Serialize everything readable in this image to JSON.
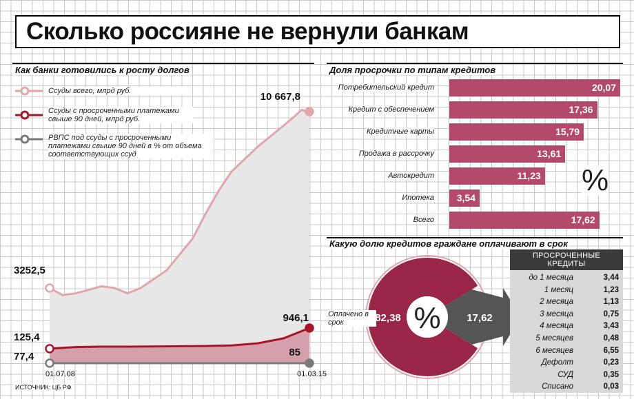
{
  "title": "Сколько россияне не вернули банкам",
  "source": "ИСТОЧНИК: ЦБ РФ",
  "colors": {
    "bar": "#b44a6a",
    "light_pink": "#e0a6ae",
    "dark_red": "#a8152a",
    "gray": "#7a7a7a",
    "donut": "#9a2647",
    "donut_gray": "#555555",
    "area_gray": "#e7e7e7",
    "area_pink": "#d4a0ab"
  },
  "chart_data": [
    {
      "type": "line",
      "title": "Как банки готовились к росту долгов",
      "x_labels": [
        "01.07.08",
        "01.03.15"
      ],
      "series": [
        {
          "name": "Ссуды всего, млрд руб.",
          "start": 3252.5,
          "end": 10667.8,
          "start_label": "3252,5",
          "end_label": "10 667,8"
        },
        {
          "name": "Ссуды с просроченными платежами свыше 90 дней, млрд руб.",
          "start": 125.4,
          "end": 946.1,
          "start_label": "125,4",
          "end_label": "946,1"
        },
        {
          "name": "РВПС под ссуды с просроченными платежами свыше 90 дней в % от объема соответствующих ссуд",
          "start": 77.4,
          "end": 85,
          "start_label": "77,4",
          "end_label": "85"
        }
      ]
    },
    {
      "type": "bar",
      "title": "Доля просрочки по типам кредитов",
      "unit": "%",
      "categories": [
        "Потребительский кредит",
        "Кредит с обеспечением",
        "Кредитные карты",
        "Продажа в рассрочку",
        "Автокредит",
        "Ипотека",
        "Всего"
      ],
      "values": [
        20.07,
        17.36,
        15.79,
        13.61,
        11.23,
        3.54,
        17.62
      ],
      "value_labels": [
        "20,07",
        "17,36",
        "15,79",
        "13,61",
        "11,23",
        "3,54",
        "17,62"
      ]
    },
    {
      "type": "pie",
      "title": "Какую долю кредитов граждане оплачивают в срок",
      "center_label": "%",
      "slices": [
        {
          "label": "Оплачено в срок",
          "value": 82.38,
          "value_label": "82,38"
        },
        {
          "label": "",
          "value": 17.62,
          "value_label": "17,62"
        }
      ]
    },
    {
      "type": "table",
      "title": "ПРОСРОЧЕННЫЕ КРЕДИТЫ",
      "rows": [
        {
          "label": "до 1 месяца",
          "value": "3,44"
        },
        {
          "label": "1 месяц",
          "value": "1,23"
        },
        {
          "label": "2 месяца",
          "value": "1,13"
        },
        {
          "label": "3 месяца",
          "value": "0,75"
        },
        {
          "label": "4 месяца",
          "value": "3,43"
        },
        {
          "label": "5 месяцев",
          "value": "0,48"
        },
        {
          "label": "6 месяцев",
          "value": "6,55"
        },
        {
          "label": "Дефолт",
          "value": "0,23"
        },
        {
          "label": "СУД",
          "value": "0,35"
        },
        {
          "label": "Списано",
          "value": "0,03"
        }
      ]
    }
  ]
}
